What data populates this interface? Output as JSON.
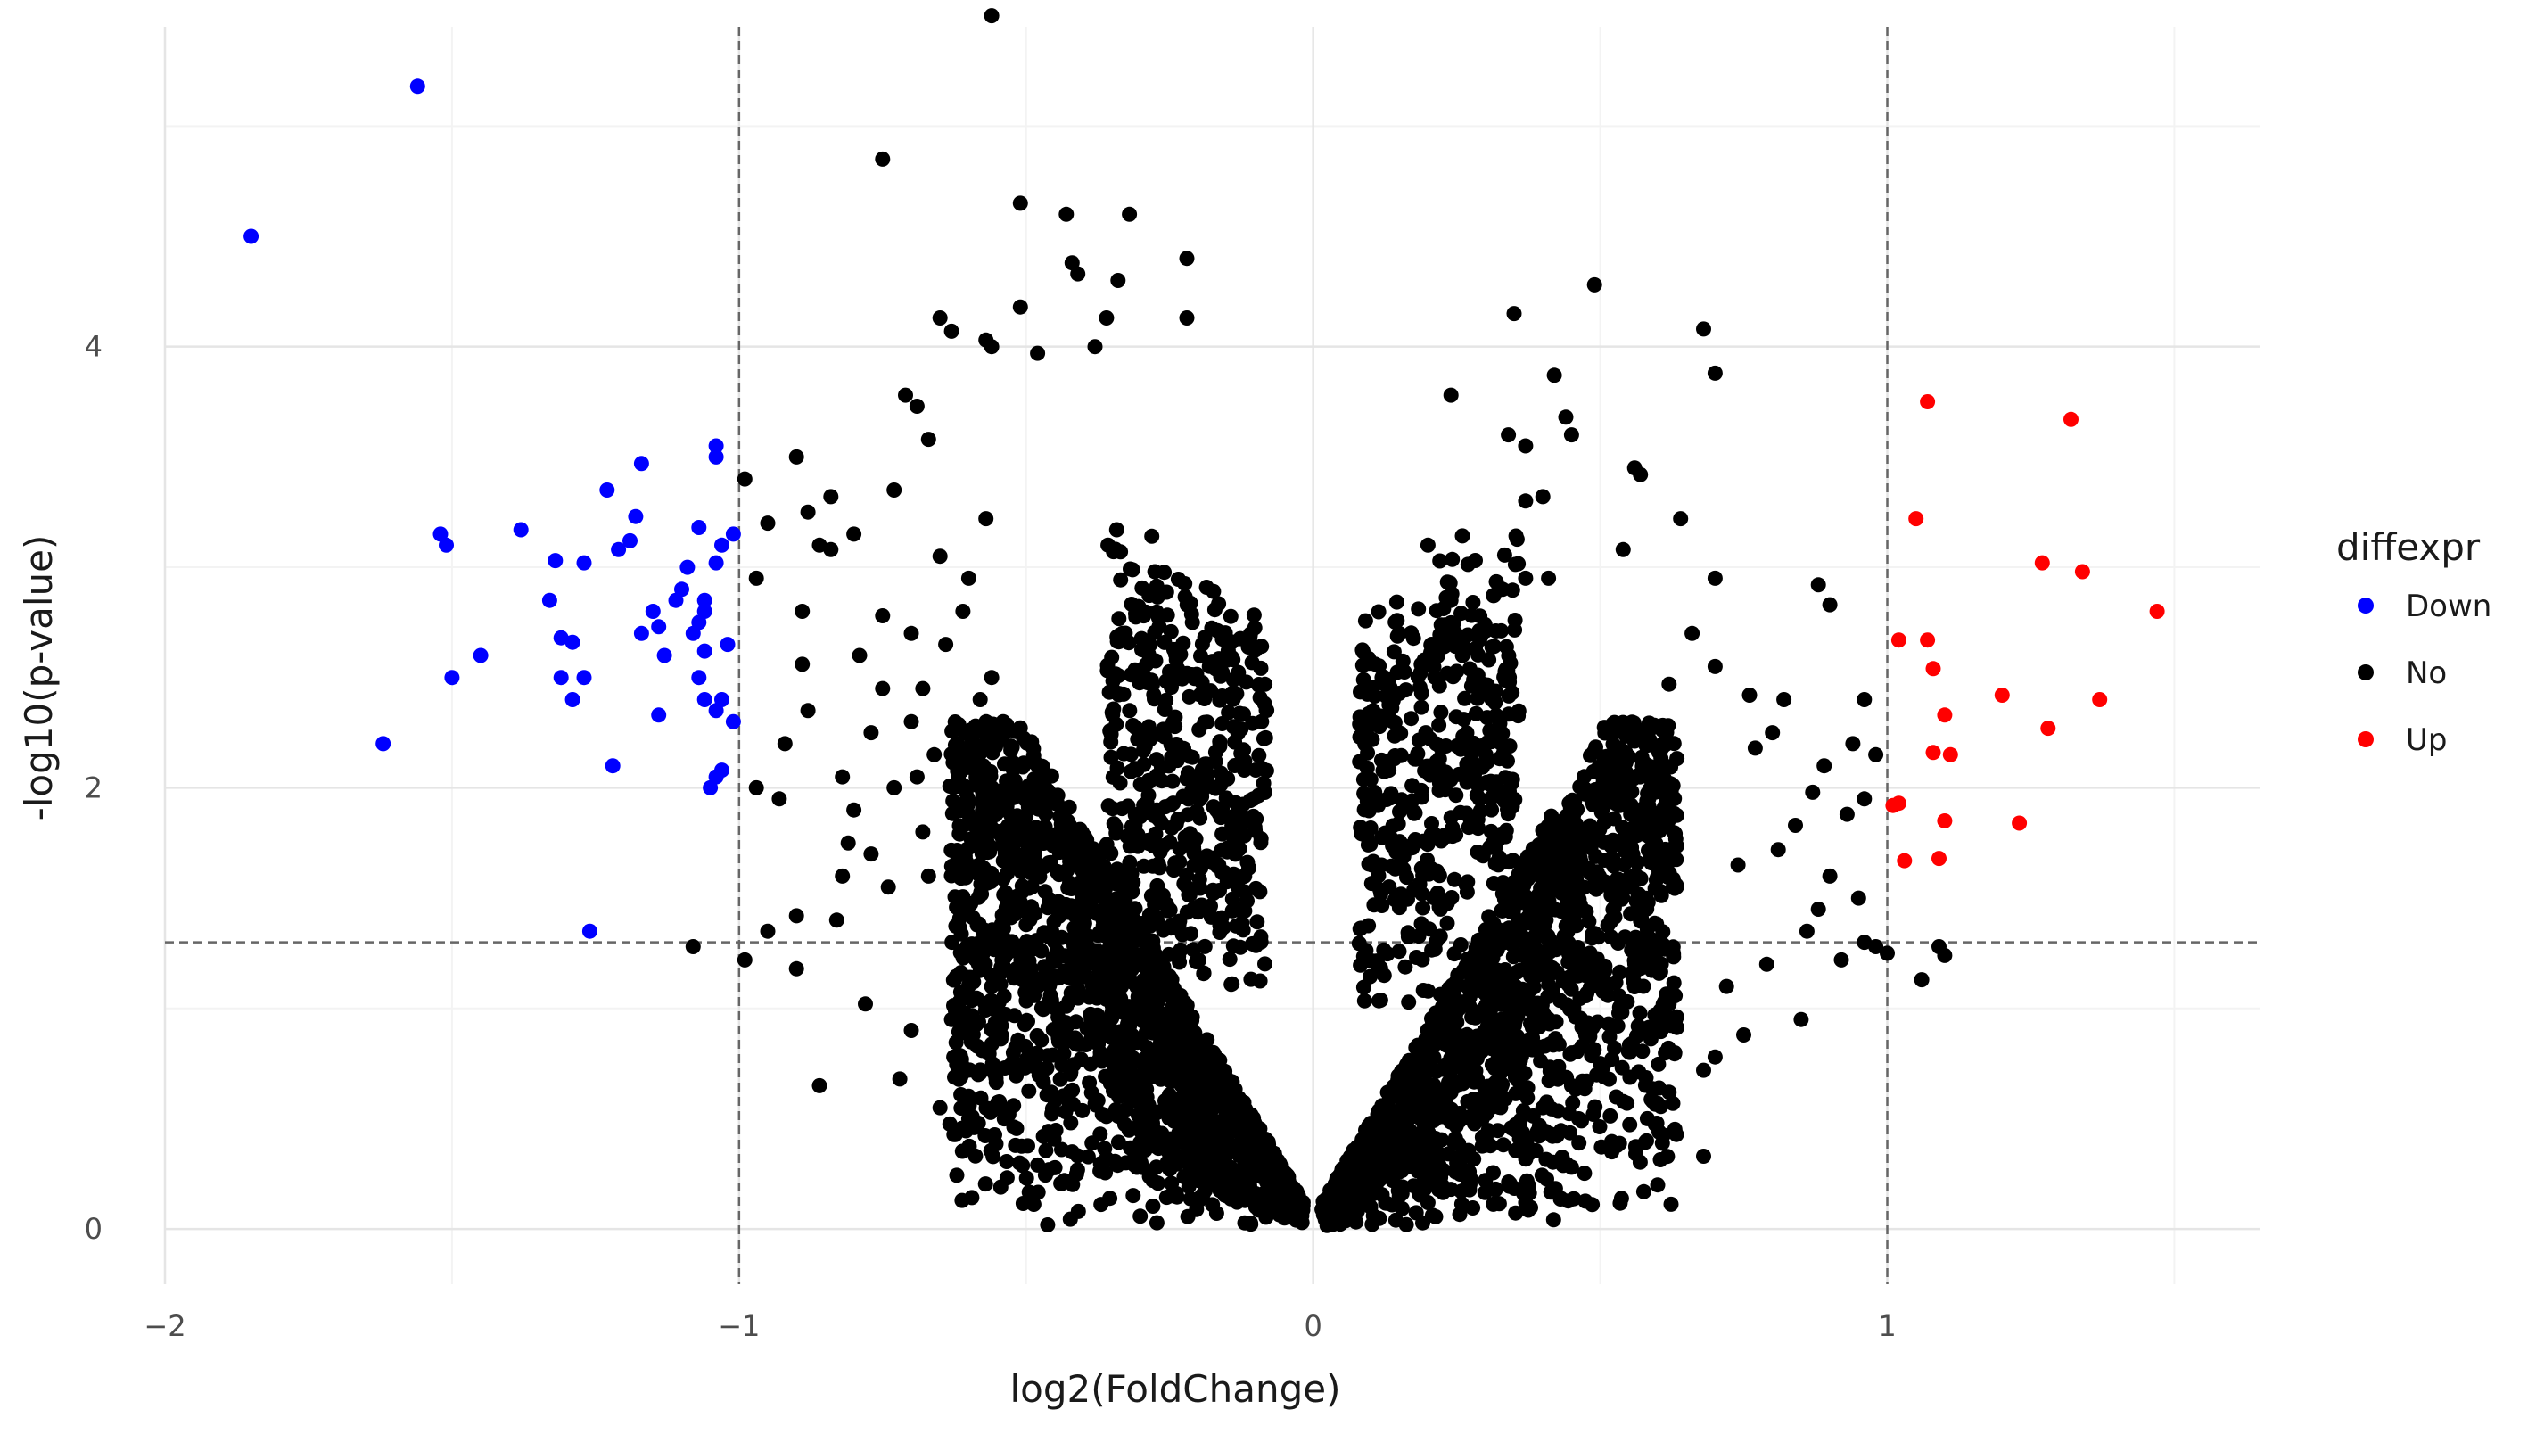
{
  "chart_data": {
    "type": "scatter",
    "xlabel": "log2(FoldChange)",
    "ylabel": "-log10(p-value)",
    "xlim": [
      -2.0,
      1.65
    ],
    "ylim": [
      -0.25,
      5.45
    ],
    "x_ticks": [
      -2,
      -1,
      0,
      1
    ],
    "x_tick_labels": [
      "−2",
      "−1",
      "0",
      "1"
    ],
    "y_ticks": [
      0,
      2,
      4
    ],
    "y_tick_labels": [
      "0",
      "2",
      "4"
    ],
    "grid": true,
    "threshold_lines": {
      "x": [
        -1,
        1
      ],
      "y": [
        1.3
      ]
    },
    "legend": {
      "title": "diffexpr",
      "placement": "right",
      "entries": [
        {
          "label": "Down",
          "color": "#0000ff"
        },
        {
          "label": "No",
          "color": "#000000"
        },
        {
          "label": "Up",
          "color": "#ff0000"
        }
      ]
    },
    "series": [
      {
        "name": "Down",
        "color": "#0000ff",
        "points": [
          [
            -1.56,
            5.18
          ],
          [
            -1.85,
            4.5
          ],
          [
            -1.52,
            3.15
          ],
          [
            -1.51,
            3.1
          ],
          [
            -1.38,
            3.17
          ],
          [
            -1.62,
            2.2
          ],
          [
            -1.5,
            2.5
          ],
          [
            -1.45,
            2.6
          ],
          [
            -1.32,
            3.03
          ],
          [
            -1.27,
            3.02
          ],
          [
            -1.23,
            3.35
          ],
          [
            -1.17,
            3.47
          ],
          [
            -1.33,
            2.85
          ],
          [
            -1.31,
            2.68
          ],
          [
            -1.29,
            2.66
          ],
          [
            -1.31,
            2.5
          ],
          [
            -1.27,
            2.5
          ],
          [
            -1.29,
            2.4
          ],
          [
            -1.21,
            3.08
          ],
          [
            -1.19,
            3.12
          ],
          [
            -1.18,
            3.23
          ],
          [
            -1.09,
            3.0
          ],
          [
            -1.11,
            2.85
          ],
          [
            -1.07,
            3.18
          ],
          [
            -1.04,
            3.55
          ],
          [
            -1.04,
            3.5
          ],
          [
            -1.03,
            3.1
          ],
          [
            -1.01,
            3.15
          ],
          [
            -1.04,
            3.02
          ],
          [
            -1.17,
            2.7
          ],
          [
            -1.14,
            2.73
          ],
          [
            -1.15,
            2.8
          ],
          [
            -1.1,
            2.9
          ],
          [
            -1.06,
            2.85
          ],
          [
            -1.06,
            2.8
          ],
          [
            -1.07,
            2.75
          ],
          [
            -1.08,
            2.7
          ],
          [
            -1.02,
            2.65
          ],
          [
            -1.13,
            2.6
          ],
          [
            -1.06,
            2.62
          ],
          [
            -1.07,
            2.5
          ],
          [
            -1.06,
            2.4
          ],
          [
            -1.04,
            2.35
          ],
          [
            -1.03,
            2.4
          ],
          [
            -1.01,
            2.3
          ],
          [
            -1.14,
            2.33
          ],
          [
            -1.22,
            2.1
          ],
          [
            -1.04,
            2.05
          ],
          [
            -1.03,
            2.08
          ],
          [
            -1.05,
            2.0
          ],
          [
            -1.26,
            1.35
          ]
        ]
      },
      {
        "name": "No",
        "color": "#000000",
        "points": [
          [
            -0.56,
            5.5
          ],
          [
            -0.75,
            4.85
          ],
          [
            -0.51,
            4.65
          ],
          [
            -0.43,
            4.6
          ],
          [
            -0.32,
            4.6
          ],
          [
            -0.22,
            4.4
          ],
          [
            -0.42,
            4.38
          ],
          [
            -0.41,
            4.33
          ],
          [
            -0.34,
            4.3
          ],
          [
            -0.51,
            4.18
          ],
          [
            -0.65,
            4.13
          ],
          [
            -0.63,
            4.07
          ],
          [
            -0.57,
            4.03
          ],
          [
            -0.56,
            4.0
          ],
          [
            -0.48,
            3.97
          ],
          [
            -0.38,
            4.0
          ],
          [
            -0.36,
            4.13
          ],
          [
            -0.22,
            4.13
          ],
          [
            0.35,
            4.15
          ],
          [
            0.49,
            4.28
          ],
          [
            0.68,
            4.08
          ],
          [
            0.7,
            3.88
          ],
          [
            0.42,
            3.87
          ],
          [
            0.24,
            3.78
          ],
          [
            0.44,
            3.68
          ],
          [
            0.45,
            3.6
          ],
          [
            0.34,
            3.6
          ],
          [
            0.37,
            3.55
          ],
          [
            0.56,
            3.45
          ],
          [
            0.57,
            3.42
          ],
          [
            0.64,
            3.22
          ],
          [
            0.4,
            3.32
          ],
          [
            0.37,
            3.3
          ],
          [
            0.2,
            3.1
          ],
          [
            0.54,
            3.08
          ],
          [
            0.37,
            2.95
          ],
          [
            0.33,
            2.9
          ],
          [
            0.24,
            2.85
          ],
          [
            0.41,
            2.95
          ],
          [
            0.26,
            2.6
          ],
          [
            0.12,
            2.5
          ],
          [
            0.15,
            2.7
          ],
          [
            -0.71,
            3.78
          ],
          [
            -0.69,
            3.73
          ],
          [
            -0.73,
            3.35
          ],
          [
            -0.67,
            3.58
          ],
          [
            -0.9,
            3.5
          ],
          [
            -0.88,
            3.25
          ],
          [
            -0.95,
            3.2
          ],
          [
            -0.86,
            3.1
          ],
          [
            -0.8,
            3.15
          ],
          [
            -0.65,
            3.05
          ],
          [
            -0.57,
            3.22
          ],
          [
            -0.6,
            2.95
          ],
          [
            -0.61,
            2.8
          ],
          [
            -0.7,
            2.7
          ],
          [
            -0.79,
            2.6
          ],
          [
            -0.75,
            2.45
          ],
          [
            -0.77,
            2.25
          ],
          [
            -0.62,
            2.2
          ],
          [
            -0.88,
            2.35
          ],
          [
            -0.92,
            2.2
          ],
          [
            -0.82,
            2.05
          ],
          [
            -0.73,
            2.0
          ],
          [
            -0.8,
            1.9
          ],
          [
            -0.93,
            1.95
          ],
          [
            -0.97,
            2.0
          ],
          [
            -0.77,
            1.7
          ],
          [
            -0.68,
            1.8
          ],
          [
            -0.74,
            1.55
          ],
          [
            -0.81,
            1.75
          ],
          [
            -0.67,
            1.6
          ],
          [
            -0.6,
            1.65
          ],
          [
            -0.82,
            1.6
          ],
          [
            -0.9,
            1.42
          ],
          [
            -0.95,
            1.35
          ],
          [
            -0.99,
            1.22
          ],
          [
            -0.9,
            1.18
          ],
          [
            -0.86,
            0.65
          ],
          [
            -0.72,
            0.68
          ],
          [
            -0.65,
            0.55
          ],
          [
            -0.6,
            0.5
          ],
          [
            -0.53,
            0.52
          ],
          [
            -0.47,
            0.42
          ],
          [
            -0.42,
            0.35
          ],
          [
            -0.36,
            0.32
          ],
          [
            -0.3,
            0.3
          ],
          [
            -0.25,
            0.28
          ],
          [
            -1.08,
            1.28
          ],
          [
            -0.99,
            3.4
          ],
          [
            -0.84,
            3.32
          ],
          [
            -0.84,
            3.08
          ],
          [
            -0.97,
            2.95
          ],
          [
            -0.89,
            2.8
          ],
          [
            -0.89,
            2.56
          ],
          [
            -0.75,
            2.78
          ],
          [
            -0.64,
            2.65
          ],
          [
            -0.68,
            2.45
          ],
          [
            -0.7,
            2.3
          ],
          [
            -0.66,
            2.15
          ],
          [
            -0.69,
            2.05
          ],
          [
            -0.58,
            2.4
          ],
          [
            -0.56,
            2.5
          ],
          [
            -0.54,
            2.3
          ],
          [
            -0.52,
            2.0
          ],
          [
            -0.55,
            1.8
          ],
          [
            -0.58,
            1.62
          ],
          [
            -0.49,
            1.55
          ],
          [
            -0.45,
            1.48
          ],
          [
            -0.5,
            1.38
          ],
          [
            -0.56,
            1.1
          ],
          [
            -0.62,
            0.95
          ],
          [
            -0.7,
            0.9
          ],
          [
            -0.78,
            1.02
          ],
          [
            -0.83,
            1.4
          ],
          [
            0.7,
            2.95
          ],
          [
            0.66,
            2.7
          ],
          [
            0.7,
            2.55
          ],
          [
            0.62,
            2.47
          ],
          [
            0.76,
            2.42
          ],
          [
            0.82,
            2.4
          ],
          [
            0.88,
            2.92
          ],
          [
            0.9,
            2.83
          ],
          [
            0.96,
            2.4
          ],
          [
            0.94,
            2.2
          ],
          [
            0.98,
            2.15
          ],
          [
            0.89,
            2.1
          ],
          [
            0.87,
            1.98
          ],
          [
            0.96,
            1.95
          ],
          [
            0.93,
            1.88
          ],
          [
            0.81,
            1.72
          ],
          [
            0.74,
            1.65
          ],
          [
            0.9,
            1.6
          ],
          [
            0.95,
            1.5
          ],
          [
            0.88,
            1.45
          ],
          [
            0.86,
            1.35
          ],
          [
            0.92,
            1.22
          ],
          [
            0.96,
            1.3
          ],
          [
            1.0,
            1.25
          ],
          [
            0.85,
            0.95
          ],
          [
            0.75,
            0.88
          ],
          [
            0.7,
            0.78
          ],
          [
            0.68,
            0.72
          ],
          [
            0.62,
            0.62
          ],
          [
            0.6,
            0.57
          ],
          [
            0.68,
            0.33
          ],
          [
            0.6,
            0.2
          ],
          [
            0.52,
            0.35
          ],
          [
            0.45,
            0.28
          ],
          [
            0.37,
            0.12
          ],
          [
            0.3,
            0.22
          ],
          [
            0.24,
            0.18
          ],
          [
            0.2,
            0.12
          ],
          [
            1.06,
            1.13
          ],
          [
            1.09,
            1.28
          ],
          [
            1.1,
            1.24
          ],
          [
            0.98,
            1.28
          ],
          [
            0.8,
            2.25
          ],
          [
            0.77,
            2.18
          ],
          [
            0.84,
            1.83
          ],
          [
            0.79,
            1.2
          ],
          [
            0.72,
            1.1
          ],
          [
            0.62,
            1.02
          ],
          [
            0.57,
            0.9
          ],
          [
            0.5,
            0.75
          ],
          [
            0.45,
            0.65
          ],
          [
            0.4,
            0.55
          ],
          [
            0.35,
            0.45
          ],
          [
            0.3,
            0.38
          ],
          [
            0.25,
            0.3
          ],
          [
            0.2,
            0.22
          ],
          [
            0.15,
            0.15
          ],
          [
            0.1,
            0.1
          ],
          [
            0.05,
            0.05
          ],
          [
            -0.05,
            0.05
          ],
          [
            -0.1,
            0.1
          ],
          [
            -0.15,
            0.15
          ],
          [
            -0.2,
            0.22
          ]
        ]
      },
      {
        "name": "Up",
        "color": "#ff0000",
        "points": [
          [
            1.07,
            3.75
          ],
          [
            1.32,
            3.67
          ],
          [
            1.05,
            3.22
          ],
          [
            1.27,
            3.02
          ],
          [
            1.34,
            2.98
          ],
          [
            1.47,
            2.8
          ],
          [
            1.02,
            2.67
          ],
          [
            1.07,
            2.67
          ],
          [
            1.08,
            2.54
          ],
          [
            1.2,
            2.42
          ],
          [
            1.37,
            2.4
          ],
          [
            1.1,
            2.33
          ],
          [
            1.28,
            2.27
          ],
          [
            1.08,
            2.16
          ],
          [
            1.11,
            2.15
          ],
          [
            1.02,
            1.93
          ],
          [
            1.01,
            1.92
          ],
          [
            1.1,
            1.85
          ],
          [
            1.23,
            1.84
          ],
          [
            1.03,
            1.67
          ],
          [
            1.09,
            1.68
          ]
        ]
      }
    ]
  }
}
